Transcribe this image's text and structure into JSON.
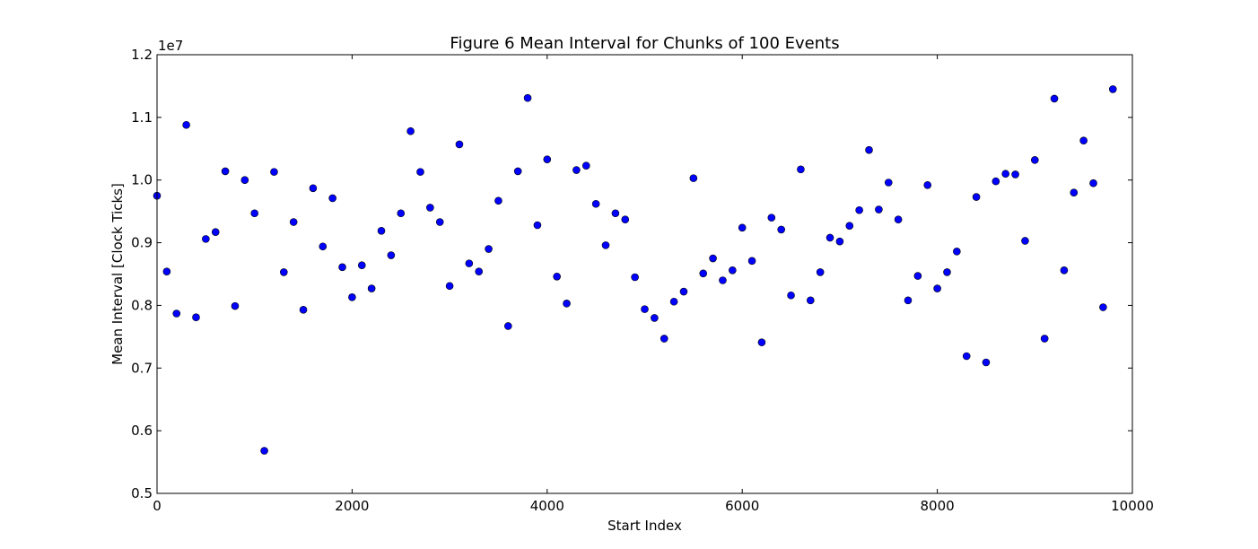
{
  "chart_data": {
    "type": "scatter",
    "title": "Figure 6 Mean Interval for Chunks of 100 Events",
    "xlabel": "Start Index",
    "ylabel": "Mean Interval [Clock Ticks]",
    "y_offset_label": "1e7",
    "xlim": [
      0,
      10000
    ],
    "ylim": [
      0.5,
      1.2
    ],
    "x_ticks": [
      0,
      2000,
      4000,
      6000,
      8000,
      10000
    ],
    "x_tick_labels": [
      "0",
      "2000",
      "4000",
      "6000",
      "8000",
      "10000"
    ],
    "y_ticks": [
      0.5,
      0.6,
      0.7,
      0.8,
      0.9,
      1.0,
      1.1,
      1.2
    ],
    "y_tick_labels": [
      "0.5",
      "0.6",
      "0.7",
      "0.8",
      "0.9",
      "1.0",
      "1.1",
      "1.2"
    ],
    "grid": false,
    "marker_color": "#0000ff",
    "x": [
      0,
      100,
      200,
      300,
      400,
      500,
      600,
      700,
      800,
      900,
      1000,
      1100,
      1200,
      1300,
      1400,
      1500,
      1600,
      1700,
      1800,
      1900,
      2000,
      2100,
      2200,
      2300,
      2400,
      2500,
      2600,
      2700,
      2800,
      2900,
      3000,
      3100,
      3200,
      3300,
      3400,
      3500,
      3600,
      3700,
      3800,
      3900,
      4000,
      4100,
      4200,
      4300,
      4400,
      4500,
      4600,
      4700,
      4800,
      4900,
      5000,
      5100,
      5200,
      5300,
      5400,
      5500,
      5600,
      5700,
      5800,
      5900,
      6000,
      6100,
      6200,
      6300,
      6400,
      6500,
      6600,
      6700,
      6800,
      6900,
      7000,
      7100,
      7200,
      7300,
      7400,
      7500,
      7600,
      7700,
      7800,
      7900,
      8000,
      8100,
      8200,
      8300,
      8400,
      8500,
      8600,
      8700,
      8800,
      8900,
      9000,
      9100,
      9200,
      9300,
      9400,
      9500,
      9600,
      9700,
      9800
    ],
    "y": [
      0.975,
      0.854,
      0.787,
      1.088,
      0.781,
      0.906,
      0.917,
      1.014,
      0.799,
      1.0,
      0.947,
      0.568,
      1.013,
      0.853,
      0.933,
      0.793,
      0.987,
      0.894,
      0.971,
      0.861,
      0.813,
      0.864,
      0.827,
      0.919,
      0.88,
      0.947,
      1.078,
      1.013,
      0.956,
      0.933,
      0.831,
      1.057,
      0.867,
      0.854,
      0.89,
      0.967,
      0.767,
      1.014,
      1.131,
      0.928,
      1.033,
      0.846,
      0.803,
      1.016,
      1.023,
      0.962,
      0.896,
      0.947,
      0.937,
      0.845,
      0.794,
      0.78,
      0.747,
      0.806,
      0.822,
      1.003,
      0.851,
      0.875,
      0.84,
      0.856,
      0.924,
      0.871,
      0.741,
      0.94,
      0.921,
      0.816,
      1.017,
      0.808,
      0.853,
      0.908,
      0.902,
      0.927,
      0.952,
      1.048,
      0.953,
      0.996,
      0.937,
      0.808,
      0.847,
      0.992,
      0.827,
      0.853,
      0.886,
      0.719,
      0.973,
      0.709,
      0.998,
      1.01,
      1.009,
      0.903,
      1.032,
      0.747,
      1.13,
      0.856,
      0.98,
      1.063,
      0.995,
      0.797,
      1.145
    ]
  }
}
